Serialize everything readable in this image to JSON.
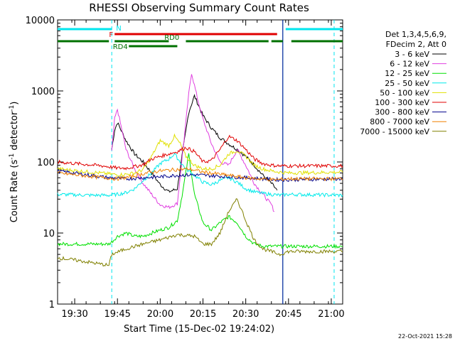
{
  "chart_data": {
    "type": "line",
    "title": "RHESSI Observing Summary Count Rates",
    "xlabel": "Start Time (15-Dec-02 19:24:02)",
    "ylabel": "Count Rate (s",
    "ylabel_sup1": "-1",
    "ylabel_mid": " detector",
    "ylabel_sup2": "-1",
    "ylabel_end": ")",
    "y_scale": "log",
    "ylim": [
      1,
      10000
    ],
    "xlim": [
      "19:24",
      "21:04"
    ],
    "x_ticks": [
      "19:30",
      "19:45",
      "20:00",
      "20:15",
      "20:30",
      "20:45",
      "21:00"
    ],
    "y_ticks": [
      "1",
      "10",
      "100",
      "1000",
      "10000"
    ],
    "grid": false,
    "legend_position": "right",
    "legend_header": [
      "Det 1,3,4,5,6,9,",
      "FDecim 2, Att 0"
    ],
    "footer_date": "22-Oct-2021 15:28",
    "flags": [
      {
        "label": "N",
        "color": "#00e5ee",
        "segments": [
          [
            "19:24",
            "19:43"
          ],
          [
            "20:44",
            "21:04"
          ]
        ]
      },
      {
        "label": "F",
        "color": "#e00000",
        "segments": [
          [
            "19:44",
            "20:41"
          ]
        ]
      },
      {
        "label": "RD0",
        "color": "#007000",
        "segments": [
          [
            "19:24",
            "19:42"
          ],
          [
            "19:44",
            "20:03"
          ],
          [
            "20:09",
            "20:38"
          ],
          [
            "20:39",
            "20:43"
          ],
          [
            "20:46",
            "21:04"
          ]
        ]
      },
      {
        "label": "RD4",
        "color": "#007000",
        "segments": [
          [
            "19:49",
            "20:06"
          ]
        ]
      }
    ],
    "markers": [
      {
        "time": "19:43",
        "color": "#00e5ee",
        "style": "dashed"
      },
      {
        "time": "20:43",
        "color": "#00e5ee",
        "style": "solid"
      },
      {
        "time": "21:01",
        "color": "#00e5ee",
        "style": "dashed"
      },
      {
        "time": "20:43",
        "color": "#00008b",
        "style": "solid"
      }
    ],
    "series": [
      {
        "name": "3 - 6 keV",
        "color": "#000000",
        "x": [
          "19:43",
          "19:44",
          "19:45",
          "19:48",
          "19:51",
          "19:54",
          "19:57",
          "20:00",
          "20:03",
          "20:06",
          "20:08",
          "20:10",
          "20:12",
          "20:15",
          "20:18",
          "20:21",
          "20:24",
          "20:27",
          "20:30",
          "20:33",
          "20:36",
          "20:39",
          "20:41"
        ],
        "values": [
          150,
          280,
          360,
          200,
          130,
          100,
          70,
          48,
          38,
          42,
          150,
          500,
          850,
          450,
          300,
          220,
          180,
          150,
          120,
          90,
          65,
          50,
          40
        ]
      },
      {
        "name": "6 - 12 keV",
        "color": "#e040e0",
        "x": [
          "19:43",
          "19:44",
          "19:45",
          "19:48",
          "19:51",
          "19:54",
          "19:57",
          "20:00",
          "20:03",
          "20:06",
          "20:08",
          "20:10",
          "20:11",
          "20:13",
          "20:15",
          "20:18",
          "20:21",
          "20:24",
          "20:27",
          "20:30",
          "20:33",
          "20:36",
          "20:39",
          "20:40"
        ],
        "values": [
          140,
          400,
          550,
          150,
          80,
          50,
          35,
          25,
          23,
          26,
          150,
          900,
          1800,
          800,
          400,
          180,
          100,
          90,
          150,
          90,
          50,
          35,
          25,
          20
        ]
      },
      {
        "name": "12 - 25 keV",
        "color": "#00e000",
        "x": [
          "19:24",
          "19:42",
          "19:43",
          "19:45",
          "19:48",
          "19:51",
          "19:54",
          "19:57",
          "20:00",
          "20:03",
          "20:06",
          "20:08",
          "20:10",
          "20:12",
          "20:15",
          "20:18",
          "20:21",
          "20:24",
          "20:27",
          "20:30",
          "20:33",
          "20:36",
          "20:39",
          "20:42",
          "20:45",
          "21:04"
        ],
        "values": [
          7,
          7,
          7.5,
          9,
          10,
          9,
          9,
          10,
          11,
          12,
          15,
          40,
          130,
          35,
          14,
          11,
          14,
          17,
          14,
          9,
          7,
          6.5,
          6.5,
          6.5,
          6.5,
          6.5
        ]
      },
      {
        "name": "25 - 50 keV",
        "color": "#00eaea",
        "x": [
          "19:24",
          "19:36",
          "19:42",
          "19:45",
          "19:48",
          "19:51",
          "19:54",
          "19:57",
          "20:00",
          "20:03",
          "20:05",
          "20:07",
          "20:09",
          "20:12",
          "20:15",
          "20:18",
          "20:21",
          "20:24",
          "20:27",
          "20:30",
          "20:33",
          "20:36",
          "20:39",
          "20:42",
          "20:45",
          "21:04"
        ],
        "values": [
          35,
          34,
          34,
          35,
          37,
          42,
          55,
          70,
          95,
          110,
          130,
          100,
          80,
          65,
          52,
          48,
          55,
          60,
          52,
          42,
          38,
          36,
          35,
          34,
          35,
          34
        ]
      },
      {
        "name": "50 - 100 keV",
        "color": "#e0e000",
        "x": [
          "19:24",
          "19:42",
          "19:45",
          "19:48",
          "19:51",
          "19:54",
          "19:57",
          "20:00",
          "20:03",
          "20:05",
          "20:07",
          "20:09",
          "20:12",
          "20:15",
          "20:18",
          "20:21",
          "20:24",
          "20:27",
          "20:30",
          "20:33",
          "20:36",
          "20:39",
          "20:42",
          "20:45",
          "21:04"
        ],
        "values": [
          80,
          68,
          66,
          67,
          70,
          78,
          120,
          200,
          170,
          230,
          180,
          120,
          90,
          80,
          80,
          90,
          130,
          145,
          120,
          90,
          80,
          75,
          72,
          70,
          72
        ]
      },
      {
        "name": "100 - 300 keV",
        "color": "#e00000",
        "x": [
          "19:24",
          "19:40",
          "19:45",
          "19:48",
          "19:51",
          "19:54",
          "19:57",
          "20:00",
          "20:03",
          "20:06",
          "20:09",
          "20:12",
          "20:15",
          "20:18",
          "20:21",
          "20:24",
          "20:27",
          "20:30",
          "20:33",
          "20:36",
          "20:39",
          "20:42",
          "20:45",
          "21:04"
        ],
        "values": [
          100,
          88,
          82,
          82,
          86,
          92,
          110,
          120,
          130,
          140,
          160,
          140,
          100,
          105,
          150,
          230,
          200,
          150,
          110,
          95,
          90,
          88,
          88,
          88
        ]
      },
      {
        "name": "300 - 800 keV",
        "color": "#00008b",
        "x": [
          "19:24",
          "19:42",
          "19:48",
          "19:54",
          "20:00",
          "20:06",
          "20:12",
          "20:18",
          "20:24",
          "20:30",
          "20:36",
          "20:42",
          "21:04"
        ],
        "values": [
          75,
          60,
          58,
          60,
          62,
          65,
          66,
          64,
          62,
          60,
          58,
          56,
          58
        ]
      },
      {
        "name": "800 - 7000 keV",
        "color": "#f08000",
        "x": [
          "19:24",
          "19:40",
          "19:45",
          "19:50",
          "19:55",
          "20:00",
          "20:05",
          "20:10",
          "20:15",
          "20:20",
          "20:25",
          "20:30",
          "20:35",
          "20:40",
          "20:45",
          "21:04"
        ],
        "values": [
          70,
          60,
          58,
          62,
          70,
          75,
          78,
          80,
          72,
          68,
          64,
          60,
          58,
          56,
          58,
          58
        ]
      },
      {
        "name": "7000 - 15000 keV",
        "color": "#808000",
        "x": [
          "19:24",
          "19:33",
          "19:42",
          "19:43",
          "19:48",
          "19:54",
          "20:00",
          "20:06",
          "20:12",
          "20:15",
          "20:18",
          "20:21",
          "20:24",
          "20:27",
          "20:30",
          "20:33",
          "20:36",
          "20:42",
          "20:45",
          "21:04"
        ],
        "values": [
          4.5,
          4,
          3.5,
          5,
          6,
          7,
          8,
          9.5,
          9,
          7,
          7,
          10,
          20,
          30,
          15,
          8,
          6,
          5,
          5.5,
          5.5
        ]
      }
    ]
  }
}
